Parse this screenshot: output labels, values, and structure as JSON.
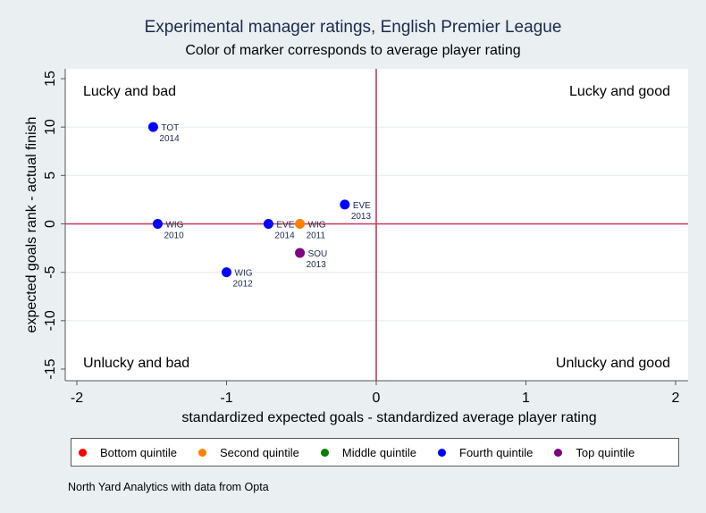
{
  "chart_data": {
    "type": "scatter",
    "title": "Experimental manager ratings, English Premier League",
    "subtitle": "Color of marker corresponds to average player rating",
    "xlabel": "standardized expected goals - standardized average player rating",
    "ylabel": "expected goals rank - actual finish",
    "xlim": [
      -2.08,
      2.09
    ],
    "ylim": [
      -16.5,
      16.0
    ],
    "xticks": [
      -2,
      -1,
      0,
      1,
      2
    ],
    "yticks": [
      -15,
      -10,
      -5,
      0,
      5,
      10,
      15
    ],
    "grid": "horizontal",
    "reference_lines": {
      "x": 0,
      "y": 0,
      "color": "#c8385a"
    },
    "quadrant_labels": [
      {
        "text": "Lucky and bad",
        "position": "top-left"
      },
      {
        "text": "Lucky and good",
        "position": "top-right"
      },
      {
        "text": "Unlucky and bad",
        "position": "bottom-left"
      },
      {
        "text": "Unlucky and good",
        "position": "bottom-right"
      }
    ],
    "series": [
      {
        "name": "Bottom quintile",
        "color": "#ff0000",
        "points": []
      },
      {
        "name": "Second quintile",
        "color": "#ff8000",
        "points": [
          {
            "x": -0.51,
            "y": 0,
            "team": "WIG",
            "year": "2011"
          }
        ]
      },
      {
        "name": "Middle quintile",
        "color": "#008000",
        "points": []
      },
      {
        "name": "Fourth quintile",
        "color": "#0000ff",
        "points": [
          {
            "x": -1.49,
            "y": 10,
            "team": "TOT",
            "year": "2014"
          },
          {
            "x": -1.46,
            "y": 0,
            "team": "WIG",
            "year": "2010"
          },
          {
            "x": -1.0,
            "y": -5,
            "team": "WIG",
            "year": "2012"
          },
          {
            "x": -0.72,
            "y": 0,
            "team": "EVE",
            "year": "2014"
          },
          {
            "x": -0.21,
            "y": 2,
            "team": "EVE",
            "year": "2013"
          }
        ]
      },
      {
        "name": "Top quintile",
        "color": "#800080",
        "points": [
          {
            "x": -0.51,
            "y": -3,
            "team": "SOU",
            "year": "2013"
          }
        ]
      }
    ],
    "legend_position": "bottom",
    "note": "North Yard Analytics with data from Opta"
  }
}
